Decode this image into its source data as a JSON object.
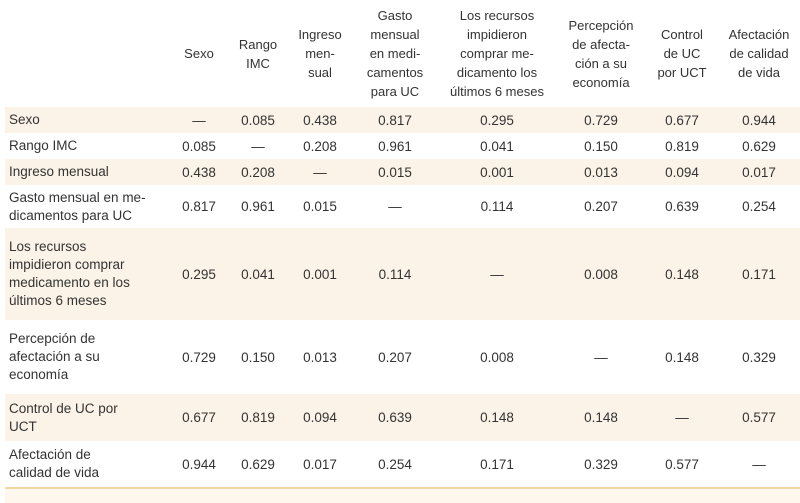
{
  "table": {
    "kind": "p-value correlation matrix",
    "columns": [
      "",
      "Sexo",
      "Rango\nIMC",
      "Ingreso\nmen-\nsual",
      "Gasto\nmensual\nen medi-\ncamentos\npara UC",
      "Los recursos\nimpidieron\ncomprar me-\ndicamento los\núltimos 6 meses",
      "Percepción\nde afecta-\nción a su\neconomía",
      "Control\nde UC\npor UCT",
      "Afectación\nde calidad\nde vida"
    ],
    "rows": [
      {
        "label": "Sexo",
        "values": [
          "—",
          "0.085",
          "0.438",
          "0.817",
          "0.295",
          "0.729",
          "0.677",
          "0.944"
        ]
      },
      {
        "label": "Rango IMC",
        "values": [
          "0.085",
          "—",
          "0.208",
          "0.961",
          "0.041",
          "0.150",
          "0.819",
          "0.629"
        ]
      },
      {
        "label": "Ingreso mensual",
        "values": [
          "0.438",
          "0.208",
          "—",
          "0.015",
          "0.001",
          "0.013",
          "0.094",
          "0.017"
        ]
      },
      {
        "label": "Gasto mensual en me-\ndicamentos para UC",
        "values": [
          "0.817",
          "0.961",
          "0.015",
          "—",
          "0.114",
          "0.207",
          "0.639",
          "0.254"
        ]
      },
      {
        "label": "Los recursos\nimpidieron comprar\nmedicamento en los\núltimos 6 meses",
        "values": [
          "0.295",
          "0.041",
          "0.001",
          "0.114",
          "—",
          "0.008",
          "0.148",
          "0.171"
        ]
      },
      {
        "label": "Percepción de\nafectación a su\neconomía",
        "values": [
          "0.729",
          "0.150",
          "0.013",
          "0.207",
          "0.008",
          "—",
          "0.148",
          "0.329"
        ]
      },
      {
        "label": "Control de UC por\nUCT",
        "values": [
          "0.677",
          "0.819",
          "0.094",
          "0.639",
          "0.148",
          "0.148",
          "—",
          "0.577"
        ]
      },
      {
        "label": "Afectación de\ncalidad de vida",
        "values": [
          "0.944",
          "0.629",
          "0.017",
          "0.254",
          "0.171",
          "0.329",
          "0.577",
          "—"
        ]
      }
    ]
  },
  "colors": {
    "stripe_background": "#fbf3e7",
    "footer_line": "#f0d7a0",
    "footer_background": "#fdf7ee",
    "text": "#333333"
  }
}
